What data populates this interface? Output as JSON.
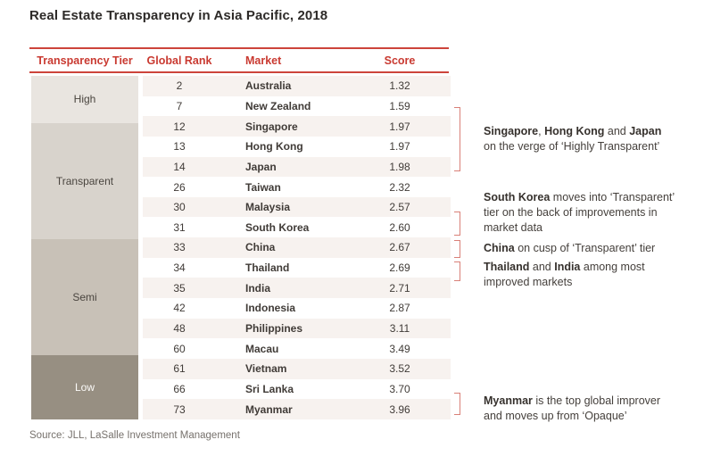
{
  "title": "Real Estate Transparency in Asia Pacific, 2018",
  "source": "Source: JLL, LaSalle Investment Management",
  "colors": {
    "accent_red": "#cd443b",
    "bracket_red": "#d98078",
    "row_alt_bg": "#f7f2ef",
    "tier_high": "#e9e5e0",
    "tier_transparent": "#d8d3cc",
    "tier_semi": "#c8c1b7",
    "tier_low": "#978f82"
  },
  "table": {
    "headers": {
      "tier": "Transparency Tier",
      "rank": "Global Rank",
      "market": "Market",
      "score": "Score"
    },
    "tiers": [
      {
        "label": "High",
        "row_span": 2,
        "bg": "#e9e5e0",
        "fg": "#4a453f"
      },
      {
        "label": "Transparent",
        "row_span": 6,
        "bg": "#d8d3cc",
        "fg": "#4a453f"
      },
      {
        "label": "Semi",
        "row_span": 6,
        "bg": "#c8c1b7",
        "fg": "#4a453f"
      },
      {
        "label": "Low",
        "row_span": 3,
        "bg": "#978f82",
        "fg": "#fcfbf9"
      }
    ],
    "rows": [
      {
        "rank": "2",
        "market": "Australia",
        "score": "1.32"
      },
      {
        "rank": "7",
        "market": "New Zealand",
        "score": "1.59"
      },
      {
        "rank": "12",
        "market": "Singapore",
        "score": "1.97"
      },
      {
        "rank": "13",
        "market": "Hong Kong",
        "score": "1.97"
      },
      {
        "rank": "14",
        "market": "Japan",
        "score": "1.98"
      },
      {
        "rank": "26",
        "market": "Taiwan",
        "score": "2.32"
      },
      {
        "rank": "30",
        "market": "Malaysia",
        "score": "2.57"
      },
      {
        "rank": "31",
        "market": "South Korea",
        "score": "2.60"
      },
      {
        "rank": "33",
        "market": "China",
        "score": "2.67"
      },
      {
        "rank": "34",
        "market": "Thailand",
        "score": "2.69"
      },
      {
        "rank": "35",
        "market": "India",
        "score": "2.71"
      },
      {
        "rank": "42",
        "market": "Indonesia",
        "score": "2.87"
      },
      {
        "rank": "48",
        "market": "Philippines",
        "score": "3.11"
      },
      {
        "rank": "60",
        "market": "Macau",
        "score": "3.49"
      },
      {
        "rank": "61",
        "market": "Vietnam",
        "score": "3.52"
      },
      {
        "rank": "66",
        "market": "Sri Lanka",
        "score": "3.70"
      },
      {
        "rank": "73",
        "market": "Myanmar",
        "score": "3.96"
      }
    ]
  },
  "annotations": [
    {
      "lines": [
        [
          {
            "t": "Singapore",
            "b": true
          },
          {
            "t": ", ",
            "b": false
          },
          {
            "t": "Hong Kong",
            "b": true
          },
          {
            "t": " and ",
            "b": false
          },
          {
            "t": "Japan",
            "b": true
          }
        ],
        [
          {
            "t": "on the verge of ‘Highly Transparent’",
            "b": false
          }
        ]
      ]
    },
    {
      "lines": [
        [
          {
            "t": "South Korea",
            "b": true
          },
          {
            "t": " moves into ‘Transparent’",
            "b": false
          }
        ],
        [
          {
            "t": "tier on the back of improvements in",
            "b": false
          }
        ],
        [
          {
            "t": "market data",
            "b": false
          }
        ]
      ]
    },
    {
      "lines": [
        [
          {
            "t": "China",
            "b": true
          },
          {
            "t": " on cusp of ‘Transparent’ tier",
            "b": false
          }
        ]
      ]
    },
    {
      "lines": [
        [
          {
            "t": "Thailand",
            "b": true
          },
          {
            "t": " and ",
            "b": false
          },
          {
            "t": "India",
            "b": true
          },
          {
            "t": " among most",
            "b": false
          }
        ],
        [
          {
            "t": "improved markets",
            "b": false
          }
        ]
      ]
    },
    {
      "lines": [
        [
          {
            "t": "Myanmar",
            "b": true
          },
          {
            "t": " is the top global improver",
            "b": false
          }
        ],
        [
          {
            "t": "and moves up from ‘Opaque’",
            "b": false
          }
        ]
      ]
    }
  ],
  "chart_data": {
    "type": "table",
    "title": "Real Estate Transparency in Asia Pacific, 2018",
    "columns": [
      "Transparency Tier",
      "Global Rank",
      "Market",
      "Score"
    ],
    "rows": [
      [
        "High",
        2,
        "Australia",
        1.32
      ],
      [
        "High",
        7,
        "New Zealand",
        1.59
      ],
      [
        "Transparent",
        12,
        "Singapore",
        1.97
      ],
      [
        "Transparent",
        13,
        "Hong Kong",
        1.97
      ],
      [
        "Transparent",
        14,
        "Japan",
        1.98
      ],
      [
        "Transparent",
        26,
        "Taiwan",
        2.32
      ],
      [
        "Transparent",
        30,
        "Malaysia",
        2.57
      ],
      [
        "Transparent",
        31,
        "South Korea",
        2.6
      ],
      [
        "Semi",
        33,
        "China",
        2.67
      ],
      [
        "Semi",
        34,
        "Thailand",
        2.69
      ],
      [
        "Semi",
        35,
        "India",
        2.71
      ],
      [
        "Semi",
        42,
        "Indonesia",
        2.87
      ],
      [
        "Semi",
        48,
        "Philippines",
        3.11
      ],
      [
        "Semi",
        60,
        "Macau",
        3.49
      ],
      [
        "Low",
        61,
        "Vietnam",
        3.52
      ],
      [
        "Low",
        66,
        "Sri Lanka",
        3.7
      ],
      [
        "Low",
        73,
        "Myanmar",
        3.96
      ]
    ],
    "annotations": [
      "Singapore, Hong Kong and Japan on the verge of ‘Highly Transparent’",
      "South Korea moves into ‘Transparent’ tier on the back of improvements in market data",
      "China on cusp of ‘Transparent’ tier",
      "Thailand and India among most improved markets",
      "Myanmar is the top global improver and moves up from ‘Opaque’"
    ],
    "source": "Source: JLL, LaSalle Investment Management"
  }
}
